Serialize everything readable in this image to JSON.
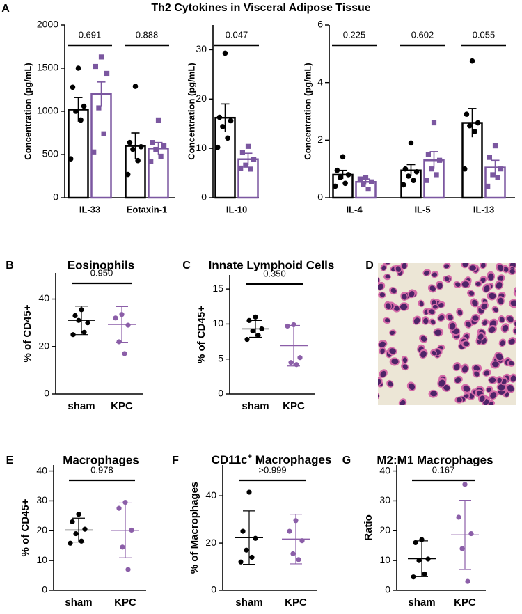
{
  "image_panel": {
    "panel": "D"
  },
  "chart_data": [
    {
      "type": "bar",
      "panel": "A",
      "title": "Th2 Cytokines in Visceral Adipose Tissue",
      "ylabel": "Concentration (pg/mL)",
      "categories": [
        "IL-33",
        "Eotaxin-1"
      ],
      "ylim": [
        0,
        2000
      ],
      "yticks": [
        0,
        500,
        1000,
        1500,
        2000
      ],
      "p_values": [
        "0.691",
        "0.888"
      ],
      "series": [
        {
          "color": "#000000",
          "marker": "circle",
          "values": [
            1020,
            600
          ],
          "errors": [
            140,
            150
          ],
          "points": [
            [
              1500,
              1280,
              1060,
              1000,
              900,
              450
            ],
            [
              1290,
              640,
              590,
              560,
              430,
              270
            ]
          ]
        },
        {
          "color": "#7b57a0",
          "marker": "square",
          "values": [
            1200,
            570
          ],
          "errors": [
            140,
            70
          ],
          "points": [
            [
              1630,
              1520,
              1440,
              1040,
              740,
              530
            ],
            [
              900,
              640,
              600,
              560,
              480,
              420
            ]
          ]
        }
      ]
    },
    {
      "type": "bar",
      "ylabel": "Concentration (pg/mL)",
      "categories": [
        "IL-10"
      ],
      "ylim": [
        0,
        35
      ],
      "yticks": [
        0,
        10,
        20,
        30
      ],
      "p_values": [
        "0.047"
      ],
      "series": [
        {
          "color": "#000000",
          "marker": "circle",
          "values": [
            16.2
          ],
          "errors": [
            2.8
          ],
          "points": [
            [
              29.3,
              16.3,
              15.6,
              14.4,
              12.1,
              10.2
            ]
          ]
        },
        {
          "color": "#7b57a0",
          "marker": "square",
          "values": [
            7.8
          ],
          "errors": [
            1.2
          ],
          "points": [
            [
              10.4,
              9.2,
              7.8,
              6.6,
              5.8,
              6.0
            ]
          ]
        }
      ]
    },
    {
      "type": "bar",
      "ylabel": "Concentration (pg/mL)",
      "categories": [
        "IL-4",
        "IL-5",
        "IL-13"
      ],
      "ylim": [
        0,
        6
      ],
      "yticks": [
        0,
        2,
        4,
        6
      ],
      "p_values": [
        "0.225",
        "0.602",
        "0.055"
      ],
      "series": [
        {
          "color": "#000000",
          "marker": "circle",
          "values": [
            0.8,
            0.95,
            2.6
          ],
          "errors": [
            0.15,
            0.2,
            0.5
          ],
          "points": [
            [
              1.42,
              0.95,
              0.8,
              0.7,
              0.5,
              0.4
            ],
            [
              1.9,
              1.0,
              0.9,
              0.75,
              0.6,
              0.45
            ],
            [
              4.75,
              2.9,
              2.6,
              2.5,
              2.3,
              1.0
            ]
          ]
        },
        {
          "color": "#7b57a0",
          "marker": "square",
          "values": [
            0.55,
            1.3,
            1.05
          ],
          "errors": [
            0.1,
            0.3,
            0.25
          ],
          "points": [
            [
              0.7,
              0.65,
              0.55,
              0.45,
              0.3
            ],
            [
              2.6,
              1.5,
              1.3,
              1.0,
              0.8,
              0.6
            ],
            [
              1.8,
              1.4,
              1.0,
              0.8,
              0.7,
              0.4
            ]
          ]
        }
      ]
    },
    {
      "type": "strip",
      "panel": "B",
      "title": "Eosinophils",
      "ylabel": "% of CD45+",
      "categories": [
        "sham",
        "KPC"
      ],
      "colors": [
        "#000000",
        "#8b5ea8"
      ],
      "ylim": [
        0,
        51
      ],
      "yticks": [
        0,
        20,
        40
      ],
      "p_values": [
        "0.950"
      ],
      "values": [
        31,
        29.3
      ],
      "errors": [
        6,
        7.5
      ],
      "points": [
        [
          35.5,
          33,
          30,
          31,
          26,
          25
        ],
        [
          33.5,
          32,
          29,
          22,
          17
        ]
      ]
    },
    {
      "type": "strip",
      "panel": "C",
      "title": "Innate Lymphoid Cells",
      "ylabel": "% of CD45+",
      "categories": [
        "sham",
        "KPC"
      ],
      "colors": [
        "#000000",
        "#8b5ea8"
      ],
      "ylim": [
        0,
        17
      ],
      "yticks": [
        0,
        5,
        10,
        15
      ],
      "p_values": [
        "0.350"
      ],
      "values": [
        9.3,
        6.9
      ],
      "errors": [
        1.2,
        2.9
      ],
      "points": [
        [
          11,
          10.5,
          9.3,
          9,
          8.4,
          7.8
        ],
        [
          9.9,
          9.7,
          5.2,
          4.5,
          4.2
        ]
      ]
    },
    {
      "type": "strip",
      "panel": "E",
      "title": "Macrophages",
      "ylabel": "% of CD45+",
      "categories": [
        "sham",
        "KPC"
      ],
      "colors": [
        "#000000",
        "#8b5ea8"
      ],
      "ylim": [
        0,
        42
      ],
      "yticks": [
        0,
        10,
        20,
        30,
        40
      ],
      "p_values": [
        "0.978"
      ],
      "values": [
        20.2,
        20.1
      ],
      "errors": [
        4,
        9.2
      ],
      "points": [
        [
          25.5,
          23,
          20.5,
          19,
          16.5,
          15.8
        ],
        [
          29.5,
          27.5,
          20.2,
          14.5,
          7
        ]
      ]
    },
    {
      "type": "strip",
      "panel": "F",
      "title": [
        "CD11c",
        "+",
        " Macrophages"
      ],
      "ylabel": "% of Macrophages",
      "categories": [
        "sham",
        "KPC"
      ],
      "colors": [
        "#000000",
        "#8b5ea8"
      ],
      "ylim": [
        0,
        53
      ],
      "yticks": [
        0,
        20,
        40
      ],
      "p_values": [
        ">0.999"
      ],
      "values": [
        22.3,
        21.7
      ],
      "errors": [
        11.3,
        10.5
      ],
      "points": [
        [
          41.5,
          25,
          22,
          17,
          14,
          12
        ],
        [
          29.5,
          25,
          21,
          15.5,
          13
        ]
      ]
    },
    {
      "type": "strip",
      "panel": "G",
      "title": "M2:M1 Macrophages",
      "ylabel": "Ratio",
      "categories": [
        "sham",
        "KPC"
      ],
      "colors": [
        "#000000",
        "#8b5ea8"
      ],
      "ylim": [
        0,
        42
      ],
      "yticks": [
        0,
        10,
        20,
        30,
        40
      ],
      "p_values": [
        "0.167"
      ],
      "values": [
        10.6,
        18.6
      ],
      "errors": [
        6,
        11.6
      ],
      "points": [
        [
          17,
          16,
          10.5,
          10,
          5.5,
          4.5
        ],
        [
          35.5,
          24.5,
          19,
          14,
          3
        ]
      ]
    }
  ]
}
